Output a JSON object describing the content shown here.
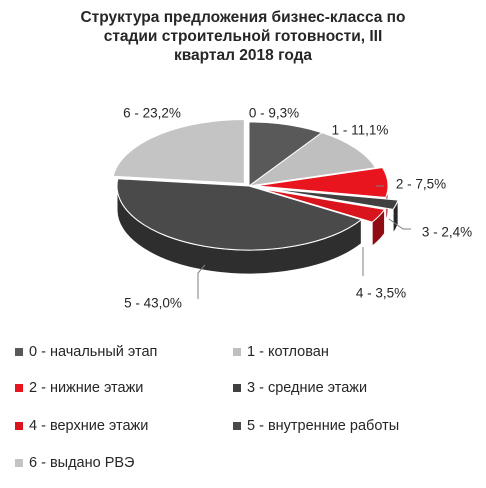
{
  "chart_data": {
    "type": "pie",
    "title": "Структура предложения бизнес-класса по\nстадии строительной готовности, III\nквартал 2018 года",
    "legend_position": "bottom",
    "slices": [
      {
        "name": "0 - начальный этап",
        "value": 9.3,
        "data_label": "0 - 9,3%",
        "color": "#595959",
        "side": "#3a3a3a"
      },
      {
        "name": "1 - котлован",
        "value": 11.1,
        "data_label": "1 - 11,1%",
        "color": "#bfbfbf",
        "side": "#9a9a9a"
      },
      {
        "name": "2 - нижние этажи",
        "value": 7.5,
        "data_label": "2 - 7,5%",
        "color": "#e8141e",
        "side": "#a50e15"
      },
      {
        "name": "3 - средние этажи",
        "value": 2.4,
        "data_label": "3 - 2,4%",
        "color": "#404040",
        "side": "#262626"
      },
      {
        "name": "4 - верхние этажи",
        "value": 3.5,
        "data_label": "4 - 3,5%",
        "color": "#d9141c",
        "side": "#8f0c12"
      },
      {
        "name": "5 - внутренние работы",
        "value": 43.0,
        "data_label": "5 - 43,0%",
        "color": "#4a4a4a",
        "side": "#2e2e2e"
      },
      {
        "name": "6 - выдано РВЭ",
        "value": 23.2,
        "data_label": "6 - 23,2%",
        "color": "#c4c4c4",
        "side": "#9e9e9e"
      }
    ]
  }
}
